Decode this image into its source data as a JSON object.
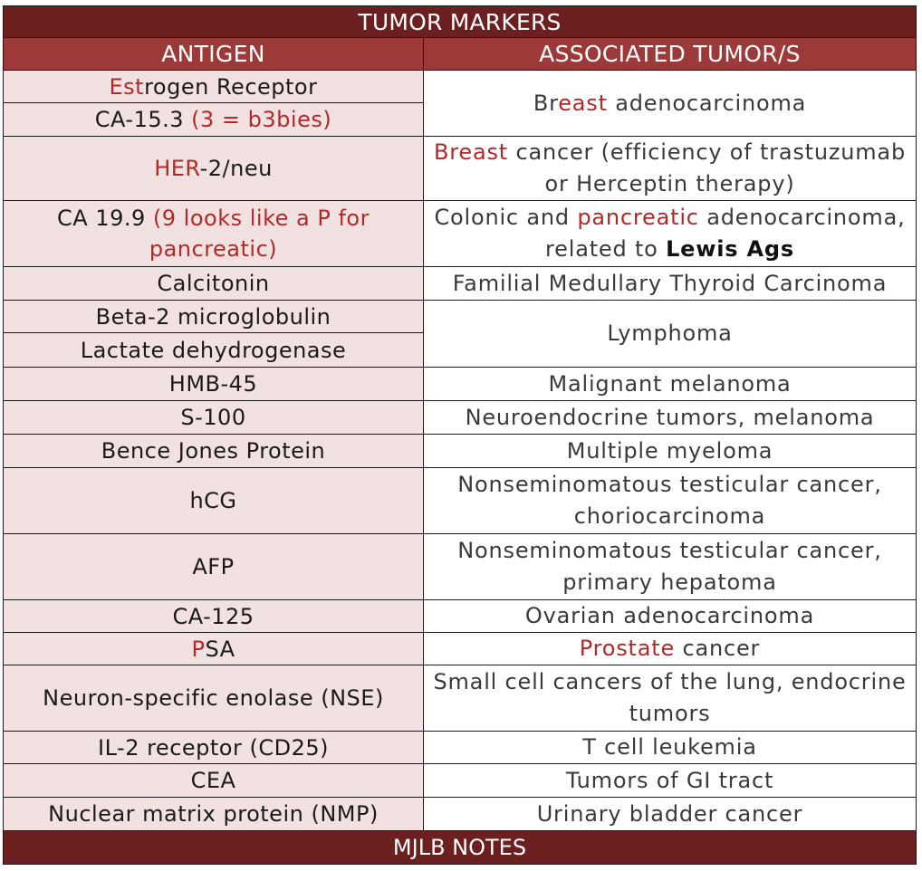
{
  "title": "TUMOR MARKERS",
  "headers": {
    "antigen": "ANTIGEN",
    "tumors": "ASSOCIATED TUMOR/S"
  },
  "rows": {
    "r1": {
      "antigen": [
        {
          "t": "Est",
          "c": "red"
        },
        {
          "t": "rogen Receptor"
        }
      ]
    },
    "r2": {
      "antigen": [
        {
          "t": "CA-15.3 "
        },
        {
          "t": "(3 = b3bies)",
          "c": "red"
        }
      ]
    },
    "g1": {
      "tumor": [
        {
          "t": "Br"
        },
        {
          "t": "east",
          "c": "red"
        },
        {
          "t": " adenocarcinoma"
        }
      ]
    },
    "r3": {
      "antigen": [
        {
          "t": "HER",
          "c": "red"
        },
        {
          "t": "-2/neu"
        }
      ],
      "tumor": [
        {
          "t": "Breast",
          "c": "red"
        },
        {
          "t": " cancer (efficiency of trastuzumab or Herceptin therapy)"
        }
      ]
    },
    "r4": {
      "antigen": [
        {
          "t": "CA 19.9 "
        },
        {
          "t": "(9 looks like a P for pancreatic)",
          "c": "red"
        }
      ],
      "tumor": [
        {
          "t": "Colonic and "
        },
        {
          "t": "pancreatic",
          "c": "red"
        },
        {
          "t": " adenocarcinoma, related to "
        },
        {
          "t": "Lewis Ags",
          "c": "bold"
        }
      ]
    },
    "r5": {
      "antigen": "Calcitonin",
      "tumor": "Familial Medullary Thyroid Carcinoma"
    },
    "r6": {
      "antigen": "Beta-2 microglobulin"
    },
    "r7": {
      "antigen": "Lactate dehydrogenase"
    },
    "g2": {
      "tumor": "Lymphoma"
    },
    "r8": {
      "antigen": "HMB-45",
      "tumor": "Malignant melanoma"
    },
    "r9": {
      "antigen": "S-100",
      "tumor": "Neuroendocrine tumors, melanoma"
    },
    "r10": {
      "antigen": "Bence Jones Protein",
      "tumor": "Multiple myeloma"
    },
    "r11": {
      "antigen": "hCG",
      "tumor": "Nonseminomatous testicular cancer, choriocarcinoma"
    },
    "r12": {
      "antigen": "AFP",
      "tumor": "Nonseminomatous testicular cancer, primary hepatoma"
    },
    "r13": {
      "antigen": "CA-125",
      "tumor": "Ovarian adenocarcinoma"
    },
    "r14": {
      "antigen": [
        {
          "t": "P",
          "c": "red"
        },
        {
          "t": "SA"
        }
      ],
      "tumor": [
        {
          "t": "Prostate",
          "c": "red"
        },
        {
          "t": " cancer"
        }
      ]
    },
    "r15": {
      "antigen": "Neuron-specific enolase (NSE)",
      "tumor": "Small cell cancers of the lung, endocrine tumors"
    },
    "r16": {
      "antigen": "IL-2 receptor (CD25)",
      "tumor": "T cell leukemia"
    },
    "r17": {
      "antigen": "CEA",
      "tumor": "Tumors of GI tract"
    },
    "r18": {
      "antigen": "Nuclear matrix protein (NMP)",
      "tumor": "Urinary bladder cancer"
    }
  },
  "footer": "MJLB NOTES",
  "colors": {
    "title_bg": "#6b1f1f",
    "header_bg": "#9c3a3a",
    "antigen_bg": "#f2e1e1",
    "accent_red": "#b02a2a"
  }
}
